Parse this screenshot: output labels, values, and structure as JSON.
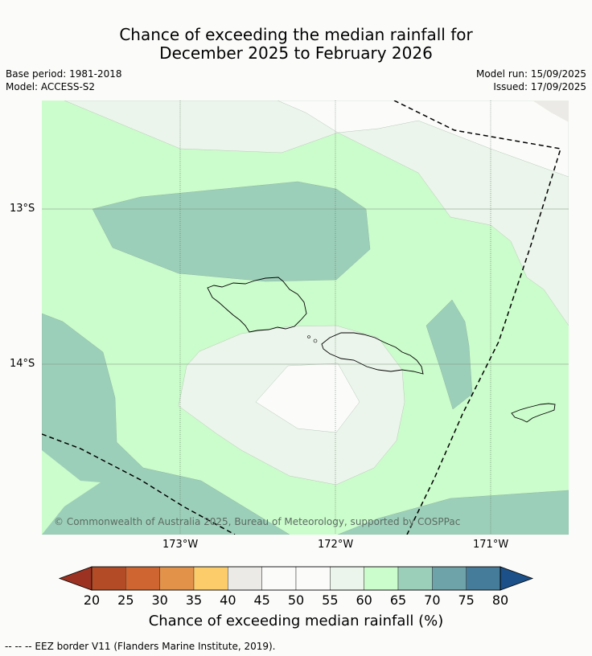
{
  "title": {
    "line1": "Chance of exceeding the median rainfall for",
    "line2": "December 2025 to February 2026"
  },
  "meta": {
    "base_period": "Base period: 1981-2018",
    "model": "Model: ACCESS-S2",
    "model_run": "Model run: 15/09/2025",
    "issued": "Issued: 17/09/2025"
  },
  "map": {
    "lat_labels": [
      "13°S",
      "14°S"
    ],
    "lon_labels": [
      "173°W",
      "172°W",
      "171°W"
    ],
    "copyright": "© Commonwealth of Australia 2025, Bureau of Meteorology, supported by COSPPac",
    "colors": {
      "c40_45": "#ebeae6",
      "c45_55": "#fbfcfa",
      "c55_60": "#ebf5eb",
      "c60_65": "#cbfccb",
      "c65_70": "#9ccfb9"
    }
  },
  "colorbar": {
    "ticks": [
      "20",
      "25",
      "30",
      "35",
      "40",
      "45",
      "50",
      "55",
      "60",
      "65",
      "70",
      "75",
      "80"
    ],
    "colors": [
      "#b34b26",
      "#cf6530",
      "#e3924a",
      "#fccc6a",
      "#ebeae6",
      "#fbfcfa",
      "#fbfcfa",
      "#ebf5eb",
      "#cbfccb",
      "#9ccfb9",
      "#6ea4a9",
      "#447c9a"
    ],
    "low_extend_color": "#9c3222",
    "high_extend_color": "#1b5088",
    "label": "Chance of exceeding median rainfall (%)"
  },
  "footer": "--  --  -- EEZ border V11 (Flanders Marine Institute, 2019)."
}
